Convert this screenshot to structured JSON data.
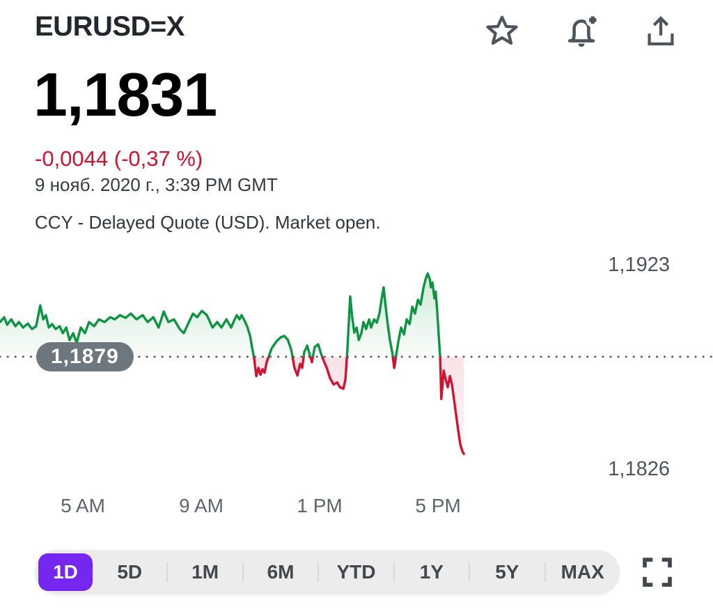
{
  "header": {
    "symbol": "EURUSD=X",
    "actions": [
      {
        "id": "favorite",
        "icon": "star-icon"
      },
      {
        "id": "create-alert",
        "icon": "bell-add-icon"
      },
      {
        "id": "share",
        "icon": "share-upload-icon"
      }
    ]
  },
  "quote": {
    "price": "1,1831",
    "change": "-0,0044 (-0,37 %)",
    "change_color": "#d2122e",
    "timestamp": "9 нояб. 2020 г., 3:39 PM GMT",
    "meta": "CCY - Delayed Quote (USD). Market open."
  },
  "chart_data": {
    "type": "line",
    "title": "EURUSD=X 1D intraday price",
    "legend": "none",
    "grid": "off",
    "x_axis": {
      "unit": "hour-of-day",
      "domain_hours": [
        2.2,
        26.29
      ],
      "ticks": [
        {
          "hour": 5,
          "label": "5 AM"
        },
        {
          "hour": 9,
          "label": "9 AM"
        },
        {
          "hour": 13,
          "label": "1 PM"
        },
        {
          "hour": 17,
          "label": "5 PM"
        }
      ]
    },
    "y_axis": {
      "domain": [
        1.1815,
        1.1931
      ],
      "labels": [
        {
          "price": 1.1923,
          "label": "1,1923"
        },
        {
          "price": 1.1826,
          "label": "1,1826"
        }
      ]
    },
    "previous_close": {
      "price": 1.1879,
      "label": "1,1879"
    },
    "colors": {
      "up": "#0d9440",
      "down": "#d2122e",
      "baseline_dots": "#565d64",
      "pill_bg": "#6e767e"
    },
    "series": [
      {
        "name": "EURUSD=X",
        "points": [
          [
            2.2,
            1.18955
          ],
          [
            2.34,
            1.18978
          ],
          [
            2.44,
            1.18942
          ],
          [
            2.58,
            1.18968
          ],
          [
            2.72,
            1.18935
          ],
          [
            2.84,
            1.18955
          ],
          [
            2.98,
            1.18929
          ],
          [
            3.14,
            1.18948
          ],
          [
            3.28,
            1.18922
          ],
          [
            3.42,
            1.18935
          ],
          [
            3.56,
            1.19034
          ],
          [
            3.66,
            1.18968
          ],
          [
            3.75,
            1.18988
          ],
          [
            3.85,
            1.18929
          ],
          [
            3.96,
            1.18945
          ],
          [
            4.08,
            1.18922
          ],
          [
            4.22,
            1.18935
          ],
          [
            4.32,
            1.18902
          ],
          [
            4.44,
            1.18929
          ],
          [
            4.55,
            1.18869
          ],
          [
            4.67,
            1.18902
          ],
          [
            4.79,
            1.18856
          ],
          [
            4.93,
            1.18929
          ],
          [
            5.07,
            1.18902
          ],
          [
            5.21,
            1.18955
          ],
          [
            5.38,
            1.18935
          ],
          [
            5.54,
            1.18968
          ],
          [
            5.73,
            1.18955
          ],
          [
            5.92,
            1.18978
          ],
          [
            6.08,
            1.18968
          ],
          [
            6.25,
            1.18988
          ],
          [
            6.44,
            1.18975
          ],
          [
            6.62,
            1.18995
          ],
          [
            6.81,
            1.18968
          ],
          [
            7.02,
            1.18988
          ],
          [
            7.19,
            1.18955
          ],
          [
            7.38,
            1.18978
          ],
          [
            7.56,
            1.18929
          ],
          [
            7.73,
            1.19005
          ],
          [
            7.89,
            1.18955
          ],
          [
            8.08,
            1.18968
          ],
          [
            8.27,
            1.18922
          ],
          [
            8.41,
            1.18902
          ],
          [
            8.55,
            1.18945
          ],
          [
            8.72,
            1.18995
          ],
          [
            8.86,
            1.18978
          ],
          [
            9.02,
            1.19008
          ],
          [
            9.19,
            1.18988
          ],
          [
            9.38,
            1.18929
          ],
          [
            9.54,
            1.18955
          ],
          [
            9.68,
            1.18929
          ],
          [
            9.85,
            1.18968
          ],
          [
            10.01,
            1.18929
          ],
          [
            10.11,
            1.18962
          ],
          [
            10.2,
            1.18988
          ],
          [
            10.29,
            1.18968
          ],
          [
            10.36,
            1.18988
          ],
          [
            10.46,
            1.18962
          ],
          [
            10.55,
            1.18935
          ],
          [
            10.65,
            1.18889
          ],
          [
            10.72,
            1.1883
          ],
          [
            10.79,
            1.1878
          ],
          [
            10.86,
            1.18698
          ],
          [
            10.93,
            1.18737
          ],
          [
            11.0,
            1.18704
          ],
          [
            11.07,
            1.18731
          ],
          [
            11.14,
            1.18714
          ],
          [
            11.21,
            1.18764
          ],
          [
            11.31,
            1.18803
          ],
          [
            11.38,
            1.1883
          ],
          [
            11.54,
            1.18863
          ],
          [
            11.68,
            1.18882
          ],
          [
            11.8,
            1.18889
          ],
          [
            11.92,
            1.18872
          ],
          [
            12.04,
            1.18823
          ],
          [
            12.15,
            1.18737
          ],
          [
            12.25,
            1.18701
          ],
          [
            12.34,
            1.18757
          ],
          [
            12.41,
            1.18737
          ],
          [
            12.48,
            1.18813
          ],
          [
            12.58,
            1.18843
          ],
          [
            12.67,
            1.18797
          ],
          [
            12.74,
            1.18764
          ],
          [
            12.83,
            1.18836
          ],
          [
            12.95,
            1.18849
          ],
          [
            13.05,
            1.18803
          ],
          [
            13.14,
            1.1877
          ],
          [
            13.24,
            1.18737
          ],
          [
            13.35,
            1.18688
          ],
          [
            13.47,
            1.18658
          ],
          [
            13.59,
            1.18668
          ],
          [
            13.68,
            1.18645
          ],
          [
            13.8,
            1.18638
          ],
          [
            13.87,
            1.18681
          ],
          [
            13.94,
            1.1883
          ],
          [
            14.03,
            1.19077
          ],
          [
            14.1,
            1.18978
          ],
          [
            14.17,
            1.18905
          ],
          [
            14.25,
            1.18929
          ],
          [
            14.32,
            1.1887
          ],
          [
            14.41,
            1.18902
          ],
          [
            14.48,
            1.18955
          ],
          [
            14.57,
            1.18922
          ],
          [
            14.67,
            1.18968
          ],
          [
            14.74,
            1.18929
          ],
          [
            14.84,
            1.18968
          ],
          [
            14.93,
            1.18952
          ],
          [
            15.02,
            1.18995
          ],
          [
            15.09,
            1.19061
          ],
          [
            15.16,
            1.1912
          ],
          [
            15.23,
            1.19028
          ],
          [
            15.3,
            1.18945
          ],
          [
            15.37,
            1.18873
          ],
          [
            15.45,
            1.18813
          ],
          [
            15.52,
            1.18737
          ],
          [
            15.59,
            1.18803
          ],
          [
            15.66,
            1.18863
          ],
          [
            15.75,
            1.18929
          ],
          [
            15.85,
            1.18896
          ],
          [
            15.94,
            1.18968
          ],
          [
            16.04,
            1.18945
          ],
          [
            16.13,
            1.19028
          ],
          [
            16.22,
            1.18995
          ],
          [
            16.32,
            1.19061
          ],
          [
            16.41,
            1.19038
          ],
          [
            16.51,
            1.1912
          ],
          [
            16.58,
            1.1916
          ],
          [
            16.65,
            1.19186
          ],
          [
            16.72,
            1.1916
          ],
          [
            16.76,
            1.1912
          ],
          [
            16.81,
            1.19143
          ],
          [
            16.88,
            1.19067
          ],
          [
            16.92,
            1.191
          ],
          [
            16.97,
            1.19011
          ],
          [
            17.02,
            1.18896
          ],
          [
            17.07,
            1.1879
          ],
          [
            17.11,
            1.18589
          ],
          [
            17.19,
            1.18724
          ],
          [
            17.26,
            1.18681
          ],
          [
            17.33,
            1.18645
          ],
          [
            17.4,
            1.18698
          ],
          [
            17.47,
            1.18658
          ],
          [
            17.56,
            1.18566
          ],
          [
            17.66,
            1.1846
          ],
          [
            17.75,
            1.18374
          ],
          [
            17.82,
            1.18341
          ],
          [
            17.87,
            1.18328
          ]
        ]
      }
    ]
  },
  "range_selector": {
    "selected": "1D",
    "selected_color": "#7527f0",
    "options": [
      "1D",
      "5D",
      "1M",
      "6M",
      "YTD",
      "1Y",
      "5Y",
      "MAX"
    ],
    "fullscreen_icon": "fullscreen-icon"
  }
}
